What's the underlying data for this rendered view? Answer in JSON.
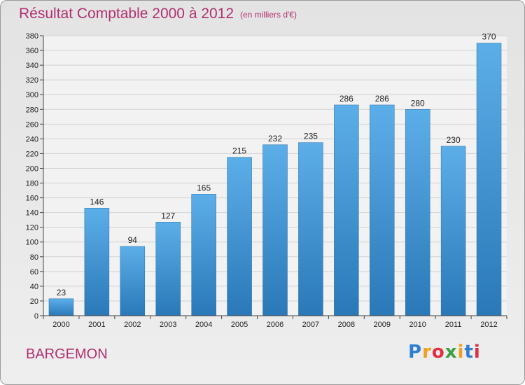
{
  "chart_data": {
    "type": "bar",
    "title": "Résultat Comptable 2000 à 2012",
    "subtitle": "(en milliers d'€)",
    "categories": [
      "2000",
      "2001",
      "2002",
      "2003",
      "2004",
      "2005",
      "2006",
      "2007",
      "2008",
      "2009",
      "2010",
      "2011",
      "2012"
    ],
    "values": [
      23,
      146,
      94,
      127,
      165,
      215,
      232,
      235,
      286,
      286,
      280,
      230,
      370
    ],
    "data_labels": [
      "23",
      "146",
      "94",
      "127",
      "165",
      "215",
      "232",
      "235",
      "286",
      "286",
      "280",
      "230",
      "370"
    ],
    "ylim": [
      0,
      380
    ],
    "yticks": [
      0,
      20,
      40,
      60,
      80,
      100,
      120,
      140,
      160,
      180,
      200,
      220,
      240,
      260,
      280,
      300,
      320,
      340,
      360,
      380
    ],
    "grid": true,
    "bar_color": "#4a9fdf"
  },
  "place": "BARGEMON",
  "logo": {
    "letters": [
      "P",
      "r",
      "o",
      "x",
      "i",
      "t",
      "i"
    ],
    "colors": [
      "#2f7fd0",
      "#f0a020",
      "#e03040",
      "#3aa040",
      "#f0a020",
      "#2f7fd0",
      "#e03040"
    ]
  }
}
